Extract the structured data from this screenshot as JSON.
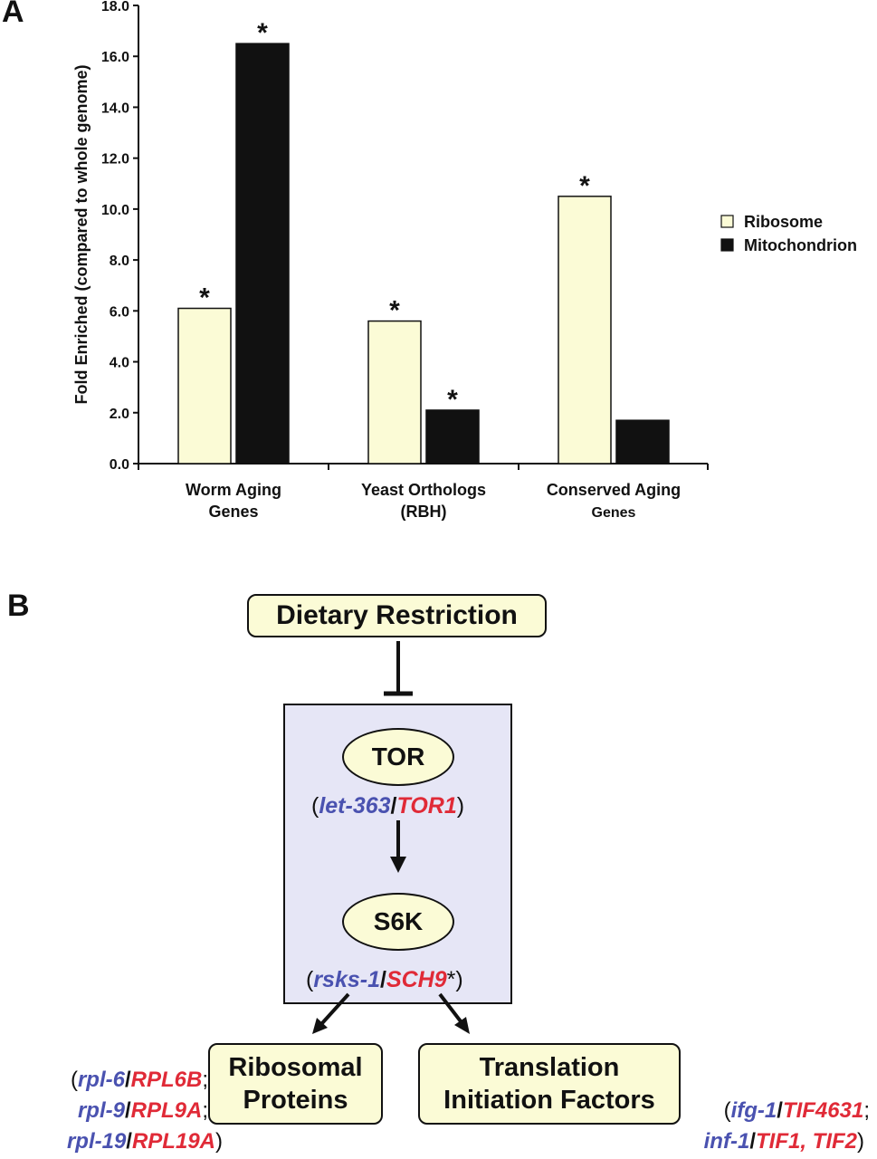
{
  "panels": {
    "a": "A",
    "b": "B"
  },
  "chart_data": {
    "type": "bar",
    "title": "",
    "xlabel": "",
    "ylabel": "Fold Enriched (compared to whole genome)",
    "ylim": [
      0,
      18
    ],
    "yticks": [
      "0.0",
      "2.0",
      "4.0",
      "6.0",
      "8.0",
      "10.0",
      "12.0",
      "14.0",
      "16.0",
      "18.0"
    ],
    "categories": [
      [
        "Worm Aging",
        "Genes"
      ],
      [
        "Yeast Orthologs",
        "(RBH)"
      ],
      [
        "Conserved Aging",
        "Genes"
      ]
    ],
    "series": [
      {
        "name": "Ribosome",
        "color": "#fbfbd6",
        "values": [
          6.1,
          5.6,
          10.5
        ],
        "significant": [
          true,
          true,
          true
        ]
      },
      {
        "name": "Mitochondrion",
        "color": "#111111",
        "values": [
          16.5,
          2.1,
          1.7
        ],
        "significant": [
          true,
          true,
          false
        ]
      }
    ],
    "significance_mark": "*",
    "legend_position": "right",
    "grid": false
  },
  "diagram": {
    "dietary_restriction": "Dietary Restriction",
    "tor": "TOR",
    "tor_genes": {
      "open": "(",
      "worm": "let-363",
      "sep": "/",
      "yeast": "TOR1",
      "close": ")"
    },
    "s6k": "S6K",
    "s6k_genes": {
      "open": "(",
      "worm": "rsks-1",
      "sep": "/",
      "yeast": "SCH9",
      "mark": "*",
      "close": ")"
    },
    "ribosomal": [
      "Ribosomal",
      "Proteins"
    ],
    "translation": [
      "Translation",
      "Initiation Factors"
    ],
    "ribo_genes": [
      {
        "open": "(",
        "worm": "rpl-6",
        "sep": "/",
        "yeast": "RPL6B",
        "end": ";"
      },
      {
        "open": "",
        "worm": "rpl-9",
        "sep": "/",
        "yeast": "RPL9A",
        "end": ";"
      },
      {
        "open": "",
        "worm": "rpl-19",
        "sep": "/",
        "yeast": "RPL19A",
        "end": ")"
      }
    ],
    "trans_genes": [
      {
        "open": "(",
        "worm": "ifg-1",
        "sep": "/",
        "yeast": "TIF4631",
        "end": ";"
      },
      {
        "open": "",
        "worm": "inf-1",
        "sep": "/",
        "yeast": "TIF1, TIF2",
        "end": ")"
      }
    ]
  }
}
